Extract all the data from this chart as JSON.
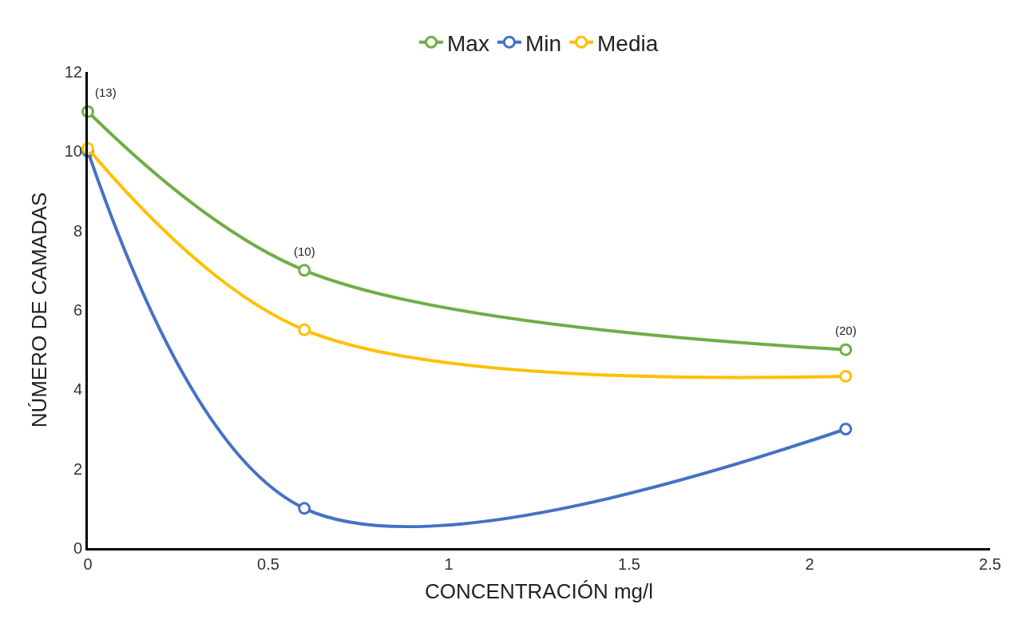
{
  "chart_data": {
    "type": "line",
    "xlabel": "CONCENTRACIÓN mg/l",
    "ylabel": "NÚMERO DE CAMADAS",
    "x": [
      0,
      0.6,
      2.1
    ],
    "series": [
      {
        "name": "Max",
        "color": "#70ad47",
        "values": [
          11,
          7,
          5
        ]
      },
      {
        "name": "Min",
        "color": "#4472c4",
        "values": [
          10,
          1,
          3
        ]
      },
      {
        "name": "Media",
        "color": "#ffc000",
        "values": [
          10.07,
          5.5,
          4.33
        ]
      }
    ],
    "xlim": [
      0,
      2.5
    ],
    "xticks": [
      0,
      0.5,
      1,
      1.5,
      2,
      2.5
    ],
    "ylim": [
      0,
      12
    ],
    "yticks": [
      0,
      2,
      4,
      6,
      8,
      10,
      12
    ],
    "legend": "top",
    "marker": "circle",
    "annotations": [
      {
        "text": "(13)",
        "x": 0,
        "y": 11
      },
      {
        "text": "(10)",
        "x": 0.6,
        "y": 7
      },
      {
        "text": "(20)",
        "x": 2.1,
        "y": 5
      }
    ]
  }
}
